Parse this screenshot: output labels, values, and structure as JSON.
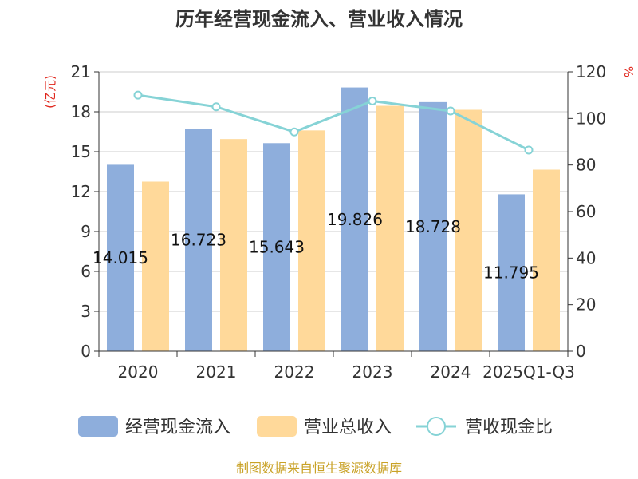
{
  "chart_data": {
    "type": "bar",
    "title": "历年经营现金流入、营业收入情况",
    "categories": [
      "2020",
      "2021",
      "2022",
      "2023",
      "2024",
      "2025Q1-Q3"
    ],
    "series": [
      {
        "name": "经营现金流入",
        "kind": "bar",
        "axis": "left",
        "color": "#8eaedc",
        "values": [
          14.015,
          16.723,
          15.643,
          19.826,
          18.728,
          11.795
        ],
        "labels": [
          "14.015",
          "16.723",
          "15.643",
          "19.826",
          "18.728",
          "11.795"
        ]
      },
      {
        "name": "营业总收入",
        "kind": "bar",
        "axis": "left",
        "color": "#ffd99a",
        "values": [
          12.75,
          15.95,
          16.6,
          18.45,
          18.15,
          13.65
        ]
      },
      {
        "name": "营收现金比",
        "kind": "line",
        "axis": "right",
        "color": "#86d3d6",
        "values": [
          110,
          105,
          94.2,
          107.5,
          103.2,
          86.4
        ]
      }
    ],
    "ylabel": "(亿元)",
    "y2label": "%",
    "ylim": [
      0,
      21
    ],
    "yticks": [
      "0",
      "3",
      "6",
      "9",
      "12",
      "15",
      "18",
      "21"
    ],
    "y2lim": [
      0,
      120
    ],
    "y2ticks": [
      "0",
      "20",
      "40",
      "60",
      "80",
      "100",
      "120"
    ],
    "grid": true,
    "legend_position": "bottom"
  },
  "source": "制图数据来自恒生聚源数据库"
}
